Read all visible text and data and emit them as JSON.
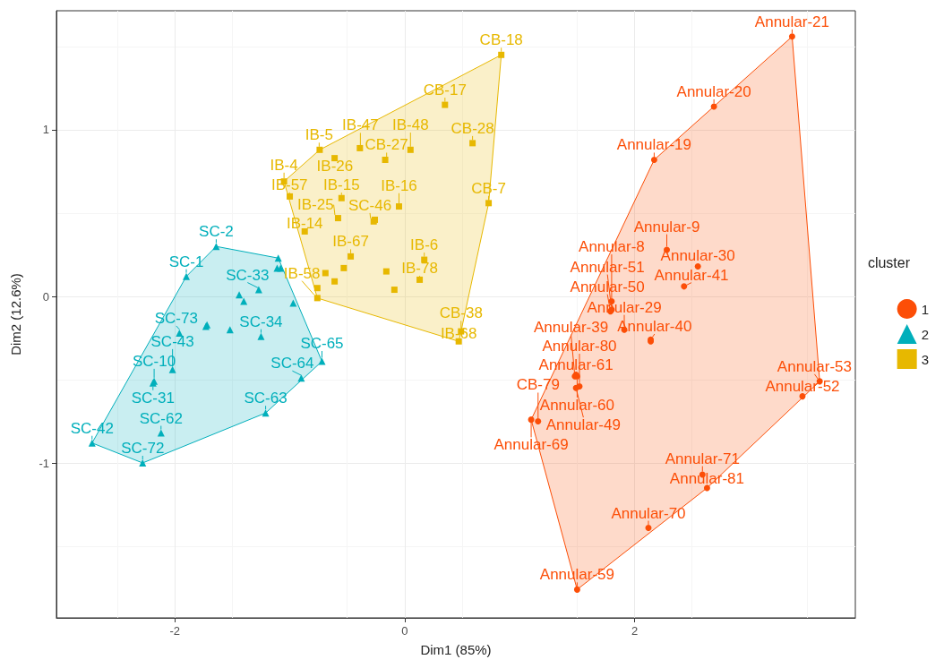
{
  "chart_data": {
    "type": "scatter",
    "xlabel": "Dim1 (85%)",
    "ylabel": "Dim2 (12.6%)",
    "legend_title": "cluster",
    "legend": "right",
    "grid": true,
    "xlim": [
      -3.03,
      3.92
    ],
    "ylim": [
      -1.93,
      1.715
    ],
    "xticks": [
      -2,
      0,
      2
    ],
    "yticks": [
      -1,
      0,
      1
    ],
    "series": [
      {
        "name": "1",
        "color": "#fc4e07",
        "marker": "circle",
        "x": [
          3.37,
          2.69,
          2.17,
          2.28,
          2.55,
          2.43,
          1.8,
          1.79,
          1.8,
          2.14,
          2.14,
          1.91,
          1.48,
          1.5,
          1.49,
          1.49,
          1.52,
          1.1,
          1.16,
          3.61,
          3.46,
          2.59,
          2.63,
          2.12,
          1.5
        ],
        "values": [
          1.56,
          1.14,
          0.82,
          0.28,
          0.18,
          0.06,
          -0.03,
          -0.09,
          -0.08,
          -0.26,
          -0.27,
          -0.2,
          -0.48,
          -0.48,
          -0.47,
          -0.55,
          -0.54,
          -0.74,
          -0.75,
          -0.51,
          -0.6,
          -1.07,
          -1.15,
          -1.39,
          -1.76
        ],
        "value_labels": [
          "Annular-21",
          "Annular-20",
          "Annular-19",
          "Annular-9",
          "Annular-30",
          "Annular-41",
          "Annular-8",
          "Annular-50",
          "Annular-51",
          "Annular-40",
          null,
          "Annular-29",
          "Annular-39",
          "Annular-60",
          "Annular-61",
          "Annular-49",
          "Annular-80",
          "Annular-69",
          "CB-79",
          "Annular-53",
          "Annular-52",
          "Annular-71",
          "Annular-81",
          "Annular-70",
          "Annular-59"
        ]
      },
      {
        "name": "2",
        "color": "#00afbb",
        "marker": "triangle",
        "x": [
          -1.64,
          -1.9,
          -1.1,
          -1.11,
          -1.08,
          -1.44,
          -1.4,
          -1.27,
          -0.97,
          -1.96,
          -1.72,
          -1.73,
          -1.52,
          -1.25,
          -2.02,
          -2.19,
          -2.18,
          -2.72,
          -2.12,
          -2.28,
          -1.21,
          -0.9,
          -0.72
        ],
        "values": [
          0.3,
          0.12,
          0.23,
          0.17,
          0.17,
          0.01,
          -0.03,
          0.04,
          -0.04,
          -0.22,
          -0.17,
          -0.18,
          -0.2,
          -0.24,
          -0.44,
          -0.52,
          -0.51,
          -0.88,
          -0.82,
          -1.0,
          -0.7,
          -0.49,
          -0.39
        ],
        "value_labels": [
          "SC-2",
          "SC-1",
          null,
          null,
          null,
          null,
          null,
          "SC-33",
          null,
          "SC-73",
          null,
          null,
          null,
          "SC-34",
          "SC-43",
          "SC-31",
          "SC-10",
          "SC-42",
          "SC-62",
          "SC-72",
          "SC-63",
          "SC-64",
          "SC-65"
        ]
      },
      {
        "name": "3",
        "color": "#e7b800",
        "marker": "square",
        "x": [
          0.84,
          0.35,
          0.59,
          0.05,
          -0.39,
          -0.74,
          -1.05,
          -1.0,
          -0.61,
          -0.17,
          -0.55,
          -0.05,
          0.73,
          -0.58,
          -0.27,
          -0.26,
          -0.87,
          -0.47,
          0.17,
          -0.53,
          -0.69,
          -0.61,
          -0.16,
          0.13,
          -0.09,
          -0.76,
          -0.76,
          0.49,
          0.47
        ],
        "values": [
          1.45,
          1.15,
          0.92,
          0.88,
          0.89,
          0.88,
          0.69,
          0.6,
          0.83,
          0.82,
          0.59,
          0.54,
          0.56,
          0.47,
          0.45,
          0.46,
          0.39,
          0.24,
          0.22,
          0.17,
          0.14,
          0.09,
          0.15,
          0.1,
          0.04,
          -0.01,
          0.05,
          -0.21,
          -0.27
        ],
        "value_labels": [
          "CB-18",
          "CB-17",
          "CB-28",
          "IB-48",
          "IB-47",
          "IB-5",
          "IB-4",
          "IB-57",
          "IB-26",
          "CB-27",
          "IB-15",
          "IB-16",
          "CB-7",
          "IB-25",
          "SC-46",
          null,
          "IB-14",
          "IB-67",
          "IB-6",
          null,
          null,
          null,
          null,
          "IB-78",
          null,
          "IB-58",
          null,
          "CB-38",
          "IB-68"
        ]
      }
    ]
  }
}
